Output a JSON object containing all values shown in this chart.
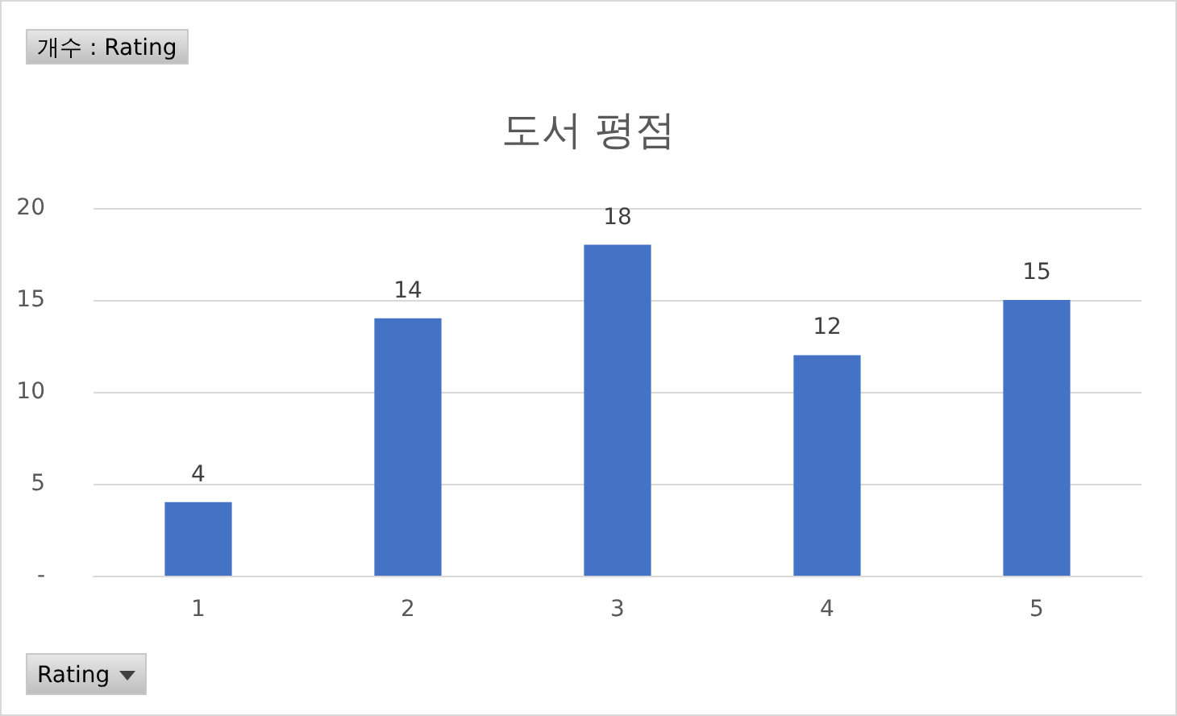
{
  "chart_data": {
    "type": "bar",
    "title": "도서 평점",
    "categories": [
      "1",
      "2",
      "3",
      "4",
      "5"
    ],
    "values": [
      4,
      14,
      18,
      12,
      15
    ],
    "color": "#4472c4",
    "ylim": [
      0,
      20
    ],
    "yticks": [
      {
        "value": 0,
        "label": "-"
      },
      5,
      10,
      15,
      20
    ],
    "grid": "y",
    "data_labels": true,
    "annotations": [
      "개수 : Rating",
      "Rating"
    ]
  }
}
